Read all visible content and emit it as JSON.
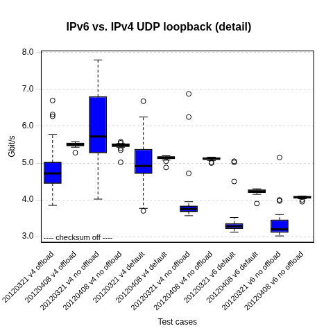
{
  "chart_data": {
    "type": "box",
    "title": "IPv6 vs. IPv4 UDP loopback (detail)",
    "x_label": "Test cases",
    "y_label": "Gbit/s",
    "annotation": "---- checksum off ----",
    "categories": [
      "20120321 v4 offload",
      "20120408 v4 offload",
      "20120321 v4 no offload",
      "20120408 v4 no offload",
      "20120321 v4 default",
      "20120408 v4 default",
      "20120321 v4 no offload",
      "20120408 v4 no offload",
      "20120321 v6 default",
      "20120408 v6 default",
      "20120321 v6 no offload",
      "20120408 v6 no offload"
    ],
    "whisker_low": [
      3.85,
      5.43,
      4.02,
      5.43,
      3.77,
      5.08,
      3.57,
      5.07,
      3.12,
      4.15,
      3.02,
      4.03
    ],
    "q1": [
      4.45,
      5.47,
      5.28,
      5.45,
      4.72,
      5.12,
      3.68,
      5.1,
      3.22,
      4.2,
      3.12,
      4.05
    ],
    "median": [
      4.72,
      5.5,
      5.72,
      5.48,
      4.92,
      5.15,
      3.75,
      5.12,
      3.28,
      4.23,
      3.2,
      4.07
    ],
    "q3": [
      5.02,
      5.54,
      6.8,
      5.52,
      5.37,
      5.17,
      3.83,
      5.14,
      3.35,
      4.27,
      3.45,
      4.09
    ],
    "whisker_high": [
      5.78,
      5.58,
      7.8,
      5.53,
      6.25,
      5.2,
      3.95,
      5.16,
      3.52,
      4.3,
      3.6,
      4.1
    ],
    "outliers": [
      [
        6.27,
        6.32,
        6.7
      ],
      [
        5.28
      ],
      [],
      [
        5.02,
        5.35,
        5.4,
        5.55,
        5.58
      ],
      [
        3.7,
        6.68
      ],
      [
        4.88,
        5.05
      ],
      [
        4.72,
        6.25,
        6.88
      ],
      [
        5.0,
        5.02
      ],
      [
        4.5,
        5.02,
        5.05
      ],
      [
        3.9
      ],
      [
        3.97,
        4.0,
        5.15
      ],
      [
        3.95,
        4.0
      ]
    ],
    "colors": [
      "#0000ff",
      "#ffffff",
      "#0000ff",
      "#ffffff",
      "#0000ff",
      "#ffffff",
      "#0000ff",
      "#ffffff",
      "#0000ff",
      "#a0d0a0",
      "#0000ff",
      "#ffffff"
    ],
    "ylim": [
      2.85,
      8.05
    ],
    "yticks": [
      {
        "value": 3,
        "label": "3.0"
      },
      {
        "value": 4,
        "label": "4.0"
      },
      {
        "value": 5,
        "label": "5.0"
      },
      {
        "value": 6,
        "label": "6.0"
      },
      {
        "value": 7,
        "label": "7.0"
      },
      {
        "value": 8,
        "label": "8.0"
      }
    ],
    "grid": true
  }
}
